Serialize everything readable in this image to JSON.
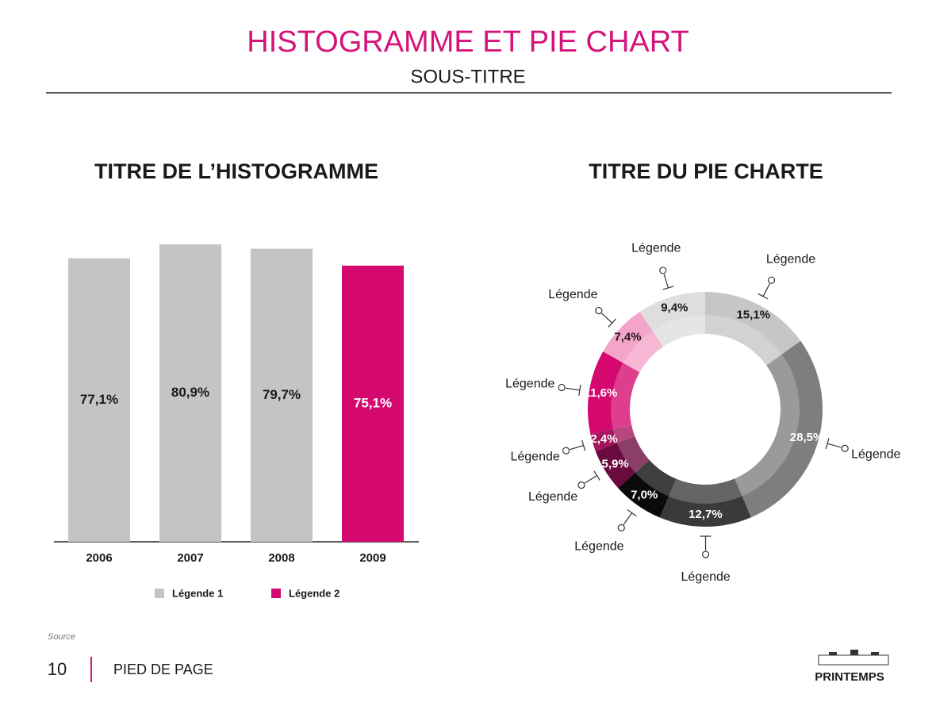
{
  "header": {
    "title": "HISTOGRAMME ET PIE CHART",
    "subtitle": "SOUS-TITRE"
  },
  "chart_data": [
    {
      "type": "bar",
      "title": "TITRE DE L’HISTOGRAMME",
      "categories": [
        "2006",
        "2007",
        "2008",
        "2009"
      ],
      "series": [
        {
          "name": "Légende 1",
          "color": "#c4c4c4",
          "values": [
            77.1,
            80.9,
            79.7,
            null
          ],
          "value_labels": [
            "77,1%",
            "80,9%",
            "79,7%",
            null
          ]
        },
        {
          "name": "Légende 2",
          "color": "#d4086e",
          "values": [
            null,
            null,
            null,
            75.1
          ],
          "value_labels": [
            null,
            null,
            null,
            "75,1%"
          ]
        }
      ]
    },
    {
      "type": "pie",
      "title": "TITRE DU PIE CHARTE",
      "categories": [
        "Légende",
        "Légende",
        "Légende",
        "Légende",
        "Légende",
        "Légende",
        "Légende",
        "Légende",
        "Légende"
      ],
      "values": [
        15.1,
        28.5,
        12.7,
        7.0,
        5.9,
        2.4,
        11.6,
        7.4,
        9.4
      ],
      "value_labels": [
        "15,1%",
        "28,5%",
        "12,7%",
        "7,0%",
        "5,9%",
        "2,4%",
        "11,6%",
        "7,4%",
        "9,4%"
      ],
      "colors": [
        "#c6c6c6",
        "#7e7e7e",
        "#3a3a3a",
        "#0a0a0a",
        "#6b0a3e",
        "#a3155c",
        "#d4086e",
        "#f4a3c9",
        "#dedede"
      ]
    }
  ],
  "footer": {
    "source": "Source",
    "page": "10",
    "text": "PIED DE PAGE",
    "brand": "PRINTEMPS"
  }
}
